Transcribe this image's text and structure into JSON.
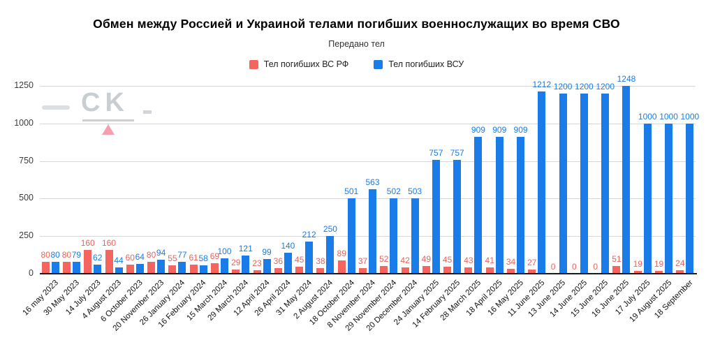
{
  "title": "Обмен между Россией и Украиной телами погибших военнослужащих во время СВО",
  "subtitle": "Передано тел",
  "legend": {
    "items": [
      {
        "label": "Тел погибших ВС  РФ",
        "color": "#F4655F"
      },
      {
        "label": "Тел погибших ВСУ",
        "color": "#1A7CE8"
      }
    ]
  },
  "watermark": {
    "text": "CK"
  },
  "chart_data": {
    "type": "bar",
    "title": "Обмен между Россией и Украиной телами погибших военнослужащих во время СВО",
    "subtitle": "Передано тел",
    "xlabel": "",
    "ylabel": "",
    "ylim": [
      0,
      1250
    ],
    "yticks": [
      0,
      250,
      500,
      750,
      1000,
      1250
    ],
    "grid": true,
    "legend_position": "top",
    "categories": [
      "16 may 2023",
      "30 May 2023",
      "14 July 2023",
      "4 August 2023",
      "6 October 2023",
      "20 November 2023",
      "26 January 2024",
      "16 February 2024",
      "15 March 2024",
      "29 March 2024",
      "12 April 2024",
      "26 April 2024",
      "31 May 2024",
      "2 August 2024",
      "18 October 2024",
      "8 November 2024",
      "29 November 2024",
      "20 December 2024",
      "24 January 2025",
      "14 February 2025",
      "28 March 2025",
      "18 April 2025",
      "16 May 2025",
      "11 June 2025",
      "13 June 2025",
      "14 June 2025",
      "15 June 2025",
      "16 June 2025",
      "17 July 2025",
      "19 August 2025",
      "18 September"
    ],
    "series": [
      {
        "name": "Тел погибших ВС  РФ",
        "color": "#F4655F",
        "label_color": "#E8635C",
        "values": [
          80,
          80,
          160,
          160,
          60,
          80,
          55,
          61,
          69,
          29,
          23,
          36,
          45,
          38,
          89,
          37,
          52,
          42,
          49,
          45,
          43,
          41,
          34,
          27,
          0,
          0,
          0,
          51,
          19,
          19,
          24
        ]
      },
      {
        "name": "Тел погибших ВСУ",
        "color": "#1A7CE8",
        "label_color": "#1A7CE8",
        "values": [
          80,
          79,
          62,
          44,
          64,
          94,
          77,
          58,
          100,
          121,
          99,
          140,
          212,
          250,
          501,
          563,
          502,
          503,
          757,
          757,
          909,
          909,
          909,
          1212,
          1200,
          1200,
          1200,
          1248,
          1000,
          1000,
          1000
        ]
      }
    ]
  }
}
